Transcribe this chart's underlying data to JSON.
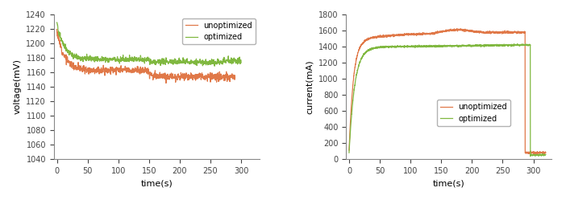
{
  "left": {
    "xlabel": "time(s)",
    "ylabel": "voltage(mV)",
    "xlim": [
      -5,
      330
    ],
    "ylim": [
      1040,
      1240
    ],
    "yticks": [
      1040,
      1060,
      1080,
      1100,
      1120,
      1140,
      1160,
      1180,
      1200,
      1220,
      1240
    ],
    "xticks": [
      0,
      50,
      100,
      150,
      200,
      250,
      300
    ],
    "unoptimized_color": "#e07848",
    "optimized_color": "#80b840",
    "legend_loc": "upper right"
  },
  "right": {
    "xlabel": "time(s)",
    "ylabel": "current(mA)",
    "xlim": [
      -5,
      330
    ],
    "ylim": [
      0,
      1800
    ],
    "yticks": [
      0,
      200,
      400,
      600,
      800,
      1000,
      1200,
      1400,
      1600,
      1800
    ],
    "xticks": [
      0,
      50,
      100,
      150,
      200,
      250,
      300
    ],
    "unoptimized_color": "#e07848",
    "optimized_color": "#80b840"
  }
}
